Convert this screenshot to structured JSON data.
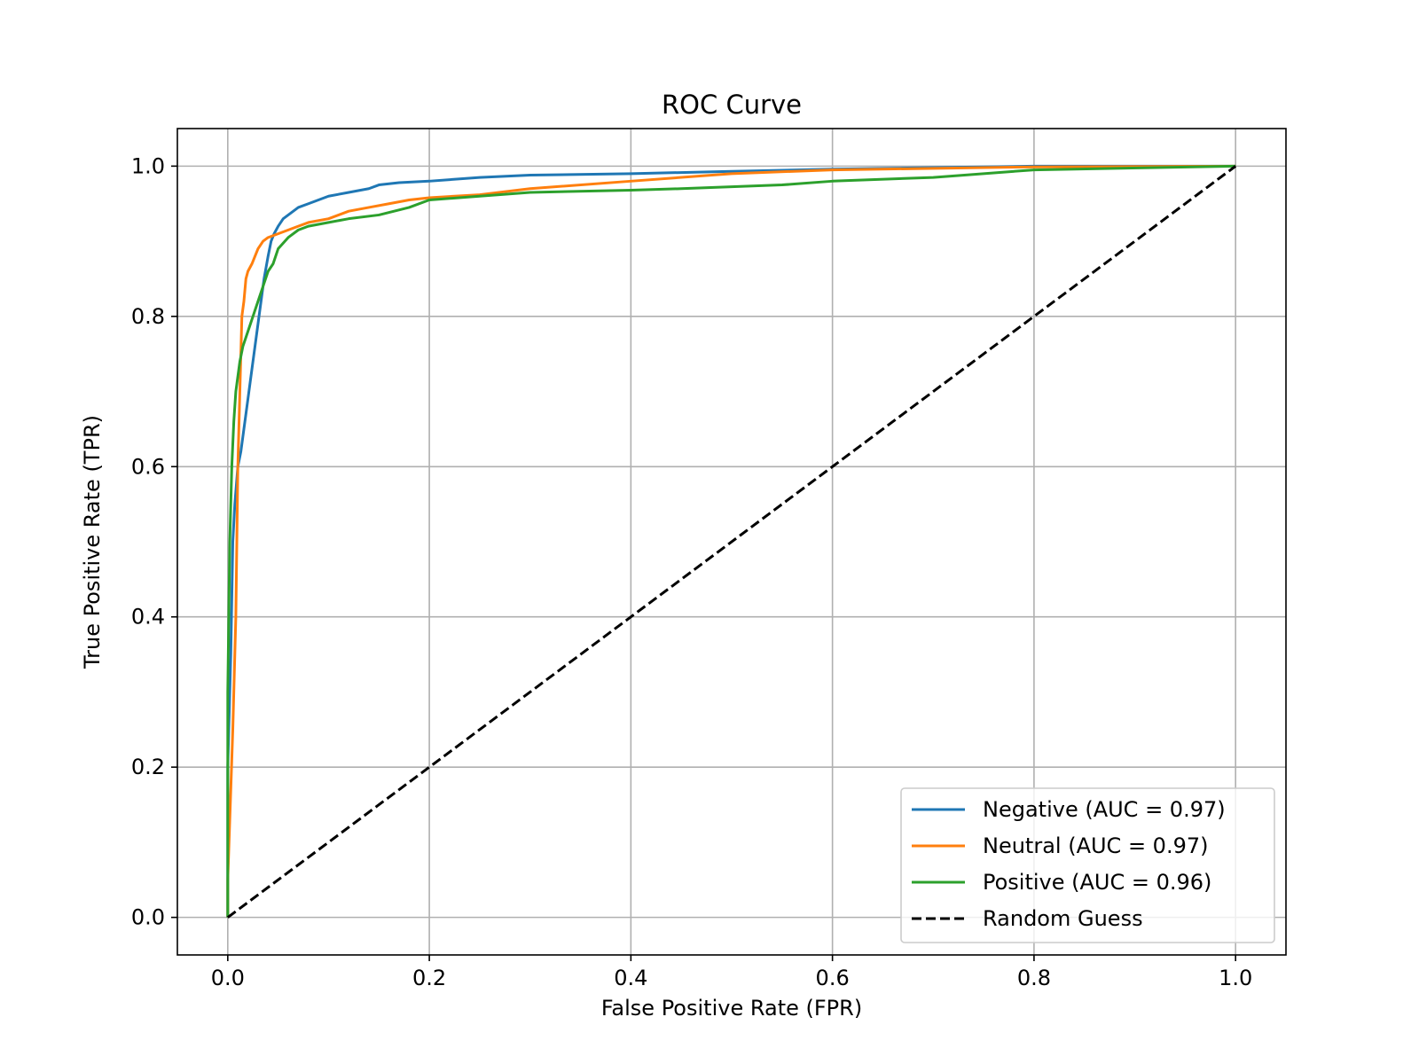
{
  "chart_data": {
    "type": "line",
    "title": "ROC Curve",
    "xlabel": "False Positive Rate (FPR)",
    "ylabel": "True Positive Rate (TPR)",
    "xlim": [
      -0.05,
      1.05
    ],
    "ylim": [
      -0.05,
      1.05
    ],
    "xticks": [
      0.0,
      0.2,
      0.4,
      0.6,
      0.8,
      1.0
    ],
    "yticks": [
      0.0,
      0.2,
      0.4,
      0.6,
      0.8,
      1.0
    ],
    "xtick_labels": [
      "0.0",
      "0.2",
      "0.4",
      "0.6",
      "0.8",
      "1.0"
    ],
    "ytick_labels": [
      "0.0",
      "0.2",
      "0.4",
      "0.6",
      "0.8",
      "1.0"
    ],
    "grid": true,
    "legend_position": "lower-right",
    "series": [
      {
        "name": "Negative (AUC = 0.97)",
        "color": "#1f77b4",
        "dash": "solid",
        "x": [
          0.0,
          0.0,
          0.003,
          0.005,
          0.007,
          0.01,
          0.013,
          0.016,
          0.02,
          0.023,
          0.027,
          0.03,
          0.033,
          0.036,
          0.04,
          0.043,
          0.046,
          0.05,
          0.055,
          0.06,
          0.065,
          0.07,
          0.08,
          0.09,
          0.1,
          0.12,
          0.14,
          0.15,
          0.17,
          0.2,
          0.25,
          0.3,
          0.4,
          0.5,
          0.6,
          0.7,
          0.8,
          1.0
        ],
        "y": [
          0.0,
          0.2,
          0.35,
          0.5,
          0.55,
          0.6,
          0.62,
          0.65,
          0.69,
          0.72,
          0.76,
          0.79,
          0.82,
          0.85,
          0.88,
          0.9,
          0.91,
          0.92,
          0.93,
          0.935,
          0.94,
          0.945,
          0.95,
          0.955,
          0.96,
          0.965,
          0.97,
          0.975,
          0.978,
          0.98,
          0.985,
          0.988,
          0.99,
          0.993,
          0.996,
          0.998,
          1.0,
          1.0
        ]
      },
      {
        "name": "Neutral (AUC = 0.97)",
        "color": "#ff7f0e",
        "dash": "solid",
        "x": [
          0.0,
          0.0,
          0.005,
          0.008,
          0.01,
          0.012,
          0.014,
          0.016,
          0.018,
          0.02,
          0.024,
          0.03,
          0.035,
          0.04,
          0.05,
          0.06,
          0.07,
          0.08,
          0.1,
          0.12,
          0.14,
          0.16,
          0.18,
          0.2,
          0.25,
          0.3,
          0.4,
          0.5,
          0.6,
          0.8,
          1.0
        ],
        "y": [
          0.0,
          0.05,
          0.25,
          0.4,
          0.6,
          0.7,
          0.8,
          0.82,
          0.85,
          0.86,
          0.87,
          0.89,
          0.9,
          0.905,
          0.91,
          0.915,
          0.92,
          0.925,
          0.93,
          0.94,
          0.945,
          0.95,
          0.955,
          0.958,
          0.962,
          0.97,
          0.98,
          0.99,
          0.995,
          0.999,
          1.0
        ]
      },
      {
        "name": "Positive (AUC = 0.96)",
        "color": "#2ca02c",
        "dash": "solid",
        "x": [
          0.0,
          0.0,
          0.002,
          0.004,
          0.006,
          0.008,
          0.01,
          0.012,
          0.015,
          0.02,
          0.025,
          0.03,
          0.035,
          0.04,
          0.045,
          0.05,
          0.06,
          0.07,
          0.08,
          0.1,
          0.12,
          0.15,
          0.18,
          0.2,
          0.25,
          0.3,
          0.4,
          0.45,
          0.55,
          0.6,
          0.7,
          0.8,
          1.0
        ],
        "y": [
          0.0,
          0.3,
          0.5,
          0.6,
          0.66,
          0.7,
          0.72,
          0.74,
          0.76,
          0.78,
          0.8,
          0.82,
          0.84,
          0.86,
          0.87,
          0.89,
          0.905,
          0.915,
          0.92,
          0.925,
          0.93,
          0.935,
          0.945,
          0.955,
          0.96,
          0.965,
          0.968,
          0.97,
          0.975,
          0.98,
          0.985,
          0.995,
          1.0
        ]
      },
      {
        "name": "Random Guess",
        "color": "#000000",
        "dash": "dashed",
        "x": [
          0.0,
          1.0
        ],
        "y": [
          0.0,
          1.0
        ]
      }
    ]
  }
}
